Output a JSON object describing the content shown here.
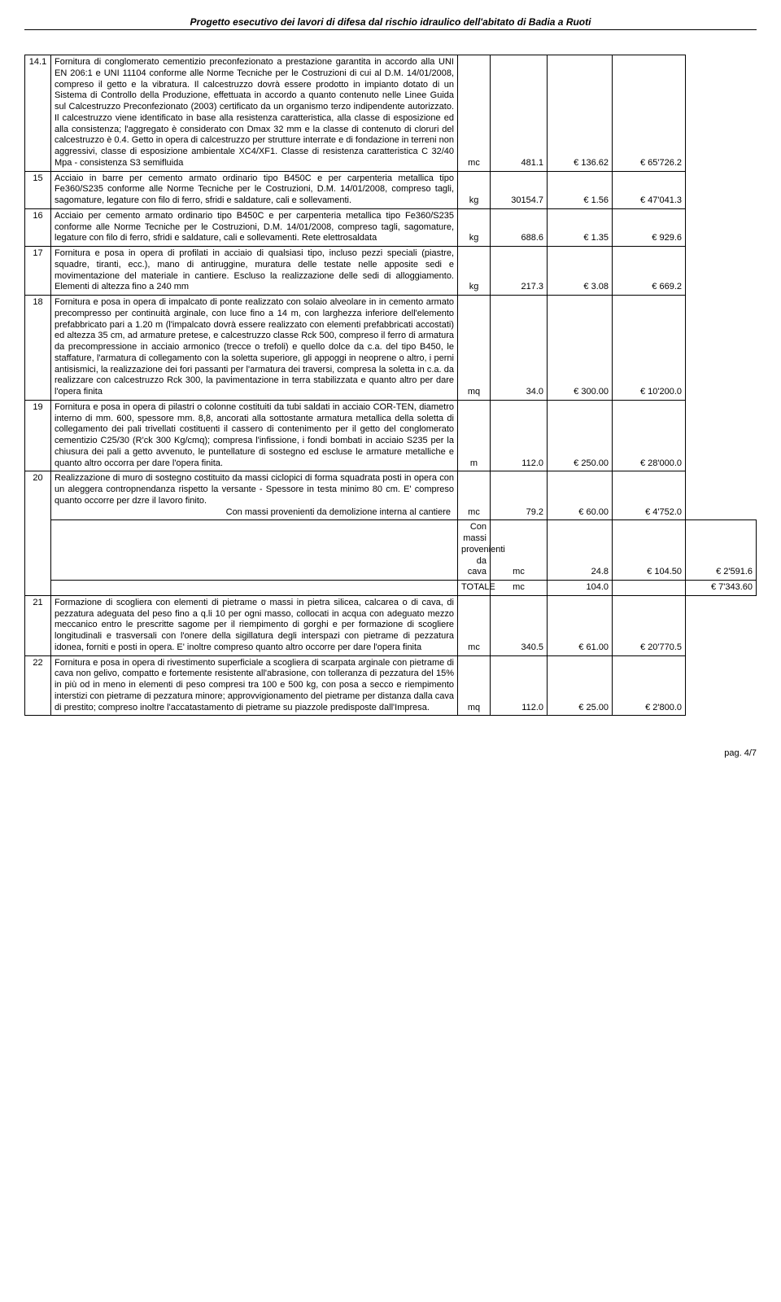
{
  "header": {
    "title": "Progetto esecutivo dei lavori di difesa dal rischio idraulico dell'abitato di Badia a Ruoti"
  },
  "footer": {
    "page": "pag. 4/7"
  },
  "rows": [
    {
      "num": "14.1",
      "desc": "Fornitura di conglomerato cementizio preconfezionato a prestazione garantita in accordo alla UNI EN 206:1 e UNI 11104 conforme alle Norme Tecniche per le Costruzioni di cui al D.M. 14/01/2008, compreso il getto e la vibratura. Il calcestruzzo dovrà essere prodotto in impianto dotato di un Sistema di Controllo della Produzione, effettuata in accordo a quanto contenuto nelle Linee Guida sul Calcestruzzo Preconfezionato (2003) certificato da un organismo terzo indipendente autorizzato. Il calcestruzzo viene identificato in base alla resistenza caratteristica, alla classe di esposizione ed alla consistenza; l'aggregato è considerato con Dmax 32 mm e la classe di contenuto di cloruri del calcestruzzo è 0.4. Getto in opera di calcestruzzo per strutture interrate e di fondazione in terreni non aggressivi, classe di esposizione ambientale XC4/XF1. Classe di resistenza caratteristica C 32/40 Mpa - consistenza S3 semifluida",
      "unit": "mc",
      "qty": "481.1",
      "price": "€    136.62",
      "total": "€     65'726.2"
    },
    {
      "num": "15",
      "desc": "Acciaio in barre per cemento armato ordinario tipo B450C e per carpenteria metallica tipo Fe360/S235 conforme alle Norme Tecniche per le Costruzioni, D.M. 14/01/2008, compreso tagli, sagomature, legature con filo di ferro, sfridi e saldature, cali e sollevamenti.",
      "unit": "kg",
      "qty": "30154.7",
      "price": "€        1.56",
      "total": "€     47'041.3"
    },
    {
      "num": "16",
      "desc": "Acciaio per cemento armato ordinario tipo B450C e per carpenteria metallica tipo Fe360/S235 conforme alle Norme Tecniche per le Costruzioni, D.M. 14/01/2008, compreso tagli, sagomature, legature con filo di ferro, sfridi e saldature, cali e sollevamenti. Rete elettrosaldata",
      "unit": "kg",
      "qty": "688.6",
      "price": "€        1.35",
      "total": "€          929.6"
    },
    {
      "num": "17",
      "desc": "Fornitura e posa in opera di profilati in acciaio di qualsiasi tipo, incluso pezzi speciali (piastre, squadre, tiranti, ecc.), mano di antiruggine, muratura delle testate nelle apposite sedi e movimentazione del materiale in cantiere. Escluso la realizzazione delle sedi di alloggiamento. Elementi di altezza fino a 240 mm",
      "unit": "kg",
      "qty": "217.3",
      "price": "€        3.08",
      "total": "€          669.2"
    },
    {
      "num": "18",
      "desc": "Fornitura e posa in opera di impalcato di ponte realizzato con solaio alveolare in in cemento armato precompresso per continuità arginale, con luce fino a 14 m, con larghezza inferiore dell'elemento prefabbricato pari a 1.20 m (l'impalcato dovrà essere realizzato con elementi prefabbricati accostati) ed altezza 35 cm, ad armature pretese, e calcestruzzo classe Rck 500, compreso il ferro di armatura da precompressione in acciaio armonico (trecce o trefoli) e quello dolce da c.a. del tipo B450, le staffature, l'armatura di collegamento con la soletta superiore, gli appoggi in neoprene o altro, i perni antisismici, la realizzazione dei fori passanti per l'armatura dei traversi, compresa la soletta in c.a. da realizzare con calcestruzzo Rck 300, la pavimentazione in terra stabilizzata e quanto altro per dare l'opera finita",
      "unit": "mq",
      "qty": "34.0",
      "price": "€    300.00",
      "total": "€     10'200.0"
    },
    {
      "num": "19",
      "desc": "Fornitura e posa in opera di pilastri o colonne costituiti da tubi saldati in acciaio COR-TEN, diametro interno di mm. 600, spessore mm. 8,8, ancorati alla sottostante armatura metallica della soletta di collegamento dei pali trivellati costituenti il cassero di contenimento per il getto del conglomerato cementizio C25/30 (R'ck 300 Kg/cmq); compresa l'infissione, i fondi bombati in acciaio S235 per la chiusura dei pali a getto avvenuto, le puntellature di sostegno ed escluse le armature metalliche e quanto altro occorra per dare l'opera finita.",
      "unit": "m",
      "qty": "112.0",
      "price": "€    250.00",
      "total": "€     28'000.0"
    },
    {
      "num": "20",
      "desc": "Realizzazione di muro di sostegno costituito da massi ciclopici di forma squadrata posti in opera con un aleggera contropnendanza rispetto la versante - Spessore in testa minimo 80 cm. E' compreso quanto occorre per dzre il lavoro finito.",
      "sublines": [
        {
          "label": "Con massi provenienti da demolizione interna al cantiere",
          "unit": "mc",
          "qty": "79.2",
          "price": "€      60.00",
          "total": "€       4'752.0"
        },
        {
          "label": "Con massi provenienti da cava",
          "unit": "mc",
          "qty": "24.8",
          "price": "€    104.50",
          "total": "€       2'591.6"
        },
        {
          "label": "TOTALE",
          "unit": "mc",
          "qty": "104.0",
          "price": "",
          "total": "€    7'343.60"
        }
      ]
    },
    {
      "num": "21",
      "desc": "Formazione di scogliera con elementi di pietrame o massi in pietra silicea, calcarea o di cava, di pezzatura adeguata del peso fino a q.li 10 per ogni masso, collocati in acqua con adeguato mezzo meccanico entro le prescritte sagome per il riempimento di gorghi e per formazione di scogliere longitudinali e trasversali con l'onere della sigillatura degli interspazi con pietrame di pezzatura idonea, forniti e posti in opera. E' inoltre compreso quanto altro occorre per dare l'opera finita",
      "unit": "mc",
      "qty": "340.5",
      "price": "€      61.00",
      "total": "€     20'770.5"
    },
    {
      "num": "22",
      "desc": "Fornitura e posa in opera di rivestimento superficiale a scogliera di scarpata arginale con pietrame di cava non gelivo, compatto e fortemente resistente all'abrasione, con tolleranza di pezzatura del 15% in più od in meno in elementi di peso compresi tra 100 e 500 kg, con posa a secco e riempimento interstizi con pietrame di pezzatura minore; approvvigionamento del pietrame per distanza dalla cava di prestito; compreso inoltre l'accatastamento di pietrame su piazzole predisposte dall'Impresa.",
      "unit": "mq",
      "qty": "112.0",
      "price": "€      25.00",
      "total": "€       2'800.0"
    }
  ]
}
